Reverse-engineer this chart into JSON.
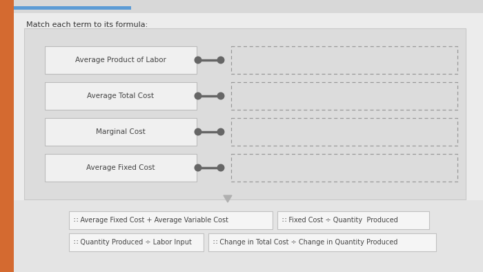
{
  "title": "Match each term to its formula:",
  "title_fontsize": 8,
  "left_terms": [
    "Average Product of Labor",
    "Average Total Cost",
    "Marginal Cost",
    "Average Fixed Cost"
  ],
  "bottom_formulas": [
    "∷ Average Fixed Cost + Average Variable Cost",
    "∷ Fixed Cost ÷ Quantity  Produced",
    "∷ Quantity Produced ÷ Labor Input",
    "∷ Change in Total Cost ÷ Change in Quantity Produced"
  ],
  "sidebar_color": "#d46a30",
  "tab_bg_color": "#d0d0d0",
  "blue_bar_color": "#5b9bd5",
  "page_bg": "#e8e8e8",
  "inner_panel_bg": "#dcdcdc",
  "inner_panel_edge": "#c8c8c8",
  "left_box_fill": "#f0f0f0",
  "left_box_edge": "#bbbbbb",
  "right_box_fill": "#ebebeb",
  "right_box_dashed_color": "#999999",
  "connector_color": "#666666",
  "bottom_area_bg": "#e0e0e0",
  "bottom_box_fill": "#f5f5f5",
  "bottom_box_edge": "#c0c0c0",
  "text_color": "#444444",
  "title_color": "#333333",
  "term_fontsize": 7.5,
  "formula_fontsize": 7.0,
  "triangle_color": "#b0b0b0"
}
